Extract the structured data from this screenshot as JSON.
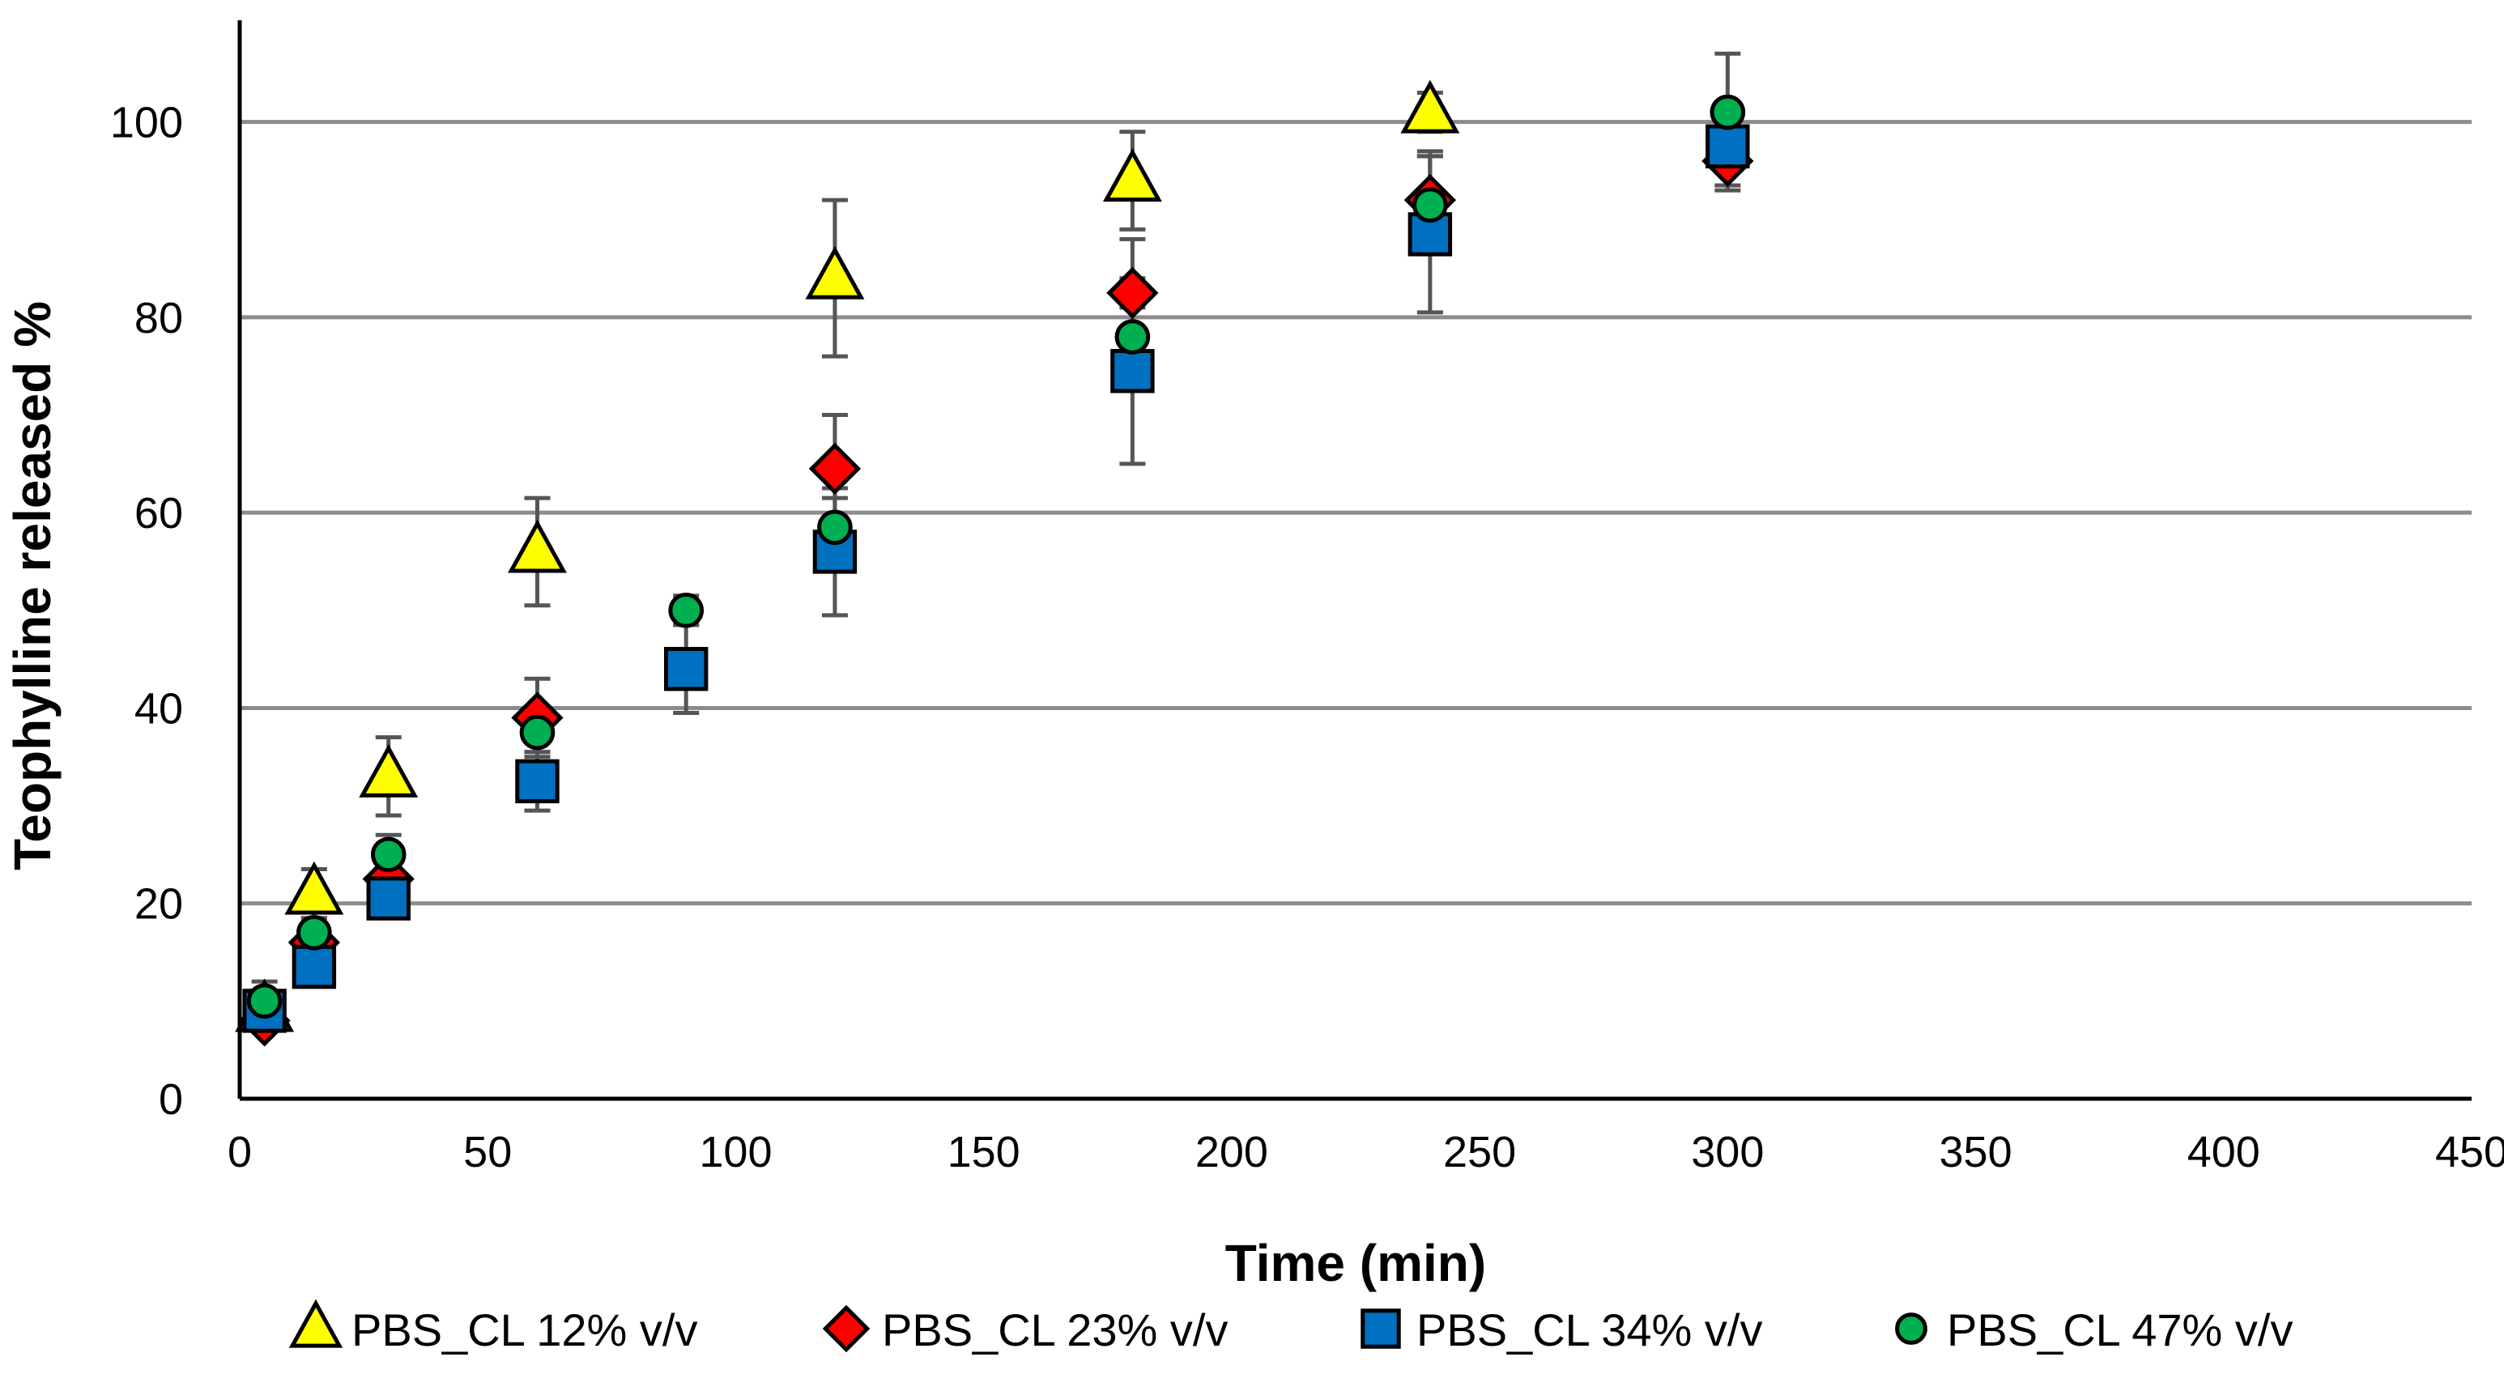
{
  "chart_data": {
    "type": "scatter",
    "title": "",
    "xlabel": "Time (min)",
    "ylabel": "Teophylline released %",
    "xlim": [
      0,
      450
    ],
    "ylim": [
      0,
      110
    ],
    "xticks": [
      0,
      50,
      100,
      150,
      200,
      250,
      300,
      350,
      400,
      450
    ],
    "yticks": [
      0,
      20,
      40,
      60,
      80,
      100
    ],
    "grid": "horizontal",
    "legend": "bottom",
    "series": [
      {
        "name": "PBS_CL 12% v/v",
        "marker": "triangle",
        "color": "#ffff00",
        "points": [
          {
            "x": 5,
            "y": 9,
            "err": 2
          },
          {
            "x": 15,
            "y": 21,
            "err": 2.5
          },
          {
            "x": 30,
            "y": 33,
            "err": 4
          },
          {
            "x": 60,
            "y": 56,
            "err": 5.5
          },
          {
            "x": 120,
            "y": 84,
            "err": 8
          },
          {
            "x": 180,
            "y": 94,
            "err": 5
          },
          {
            "x": 240,
            "y": 101,
            "err": 2
          }
        ]
      },
      {
        "name": "PBS_CL 23% v/v",
        "marker": "diamond",
        "color": "#ff0000",
        "points": [
          {
            "x": 5,
            "y": 8,
            "err": 1
          },
          {
            "x": 15,
            "y": 16,
            "err": 1.5
          },
          {
            "x": 30,
            "y": 22.5,
            "err": 2
          },
          {
            "x": 60,
            "y": 39,
            "err": 4
          },
          {
            "x": 120,
            "y": 64.5,
            "err": 5.5
          },
          {
            "x": 180,
            "y": 82.5,
            "err": 5.5
          },
          {
            "x": 240,
            "y": 92,
            "err": 5
          },
          {
            "x": 300,
            "y": 96,
            "err": 3
          }
        ]
      },
      {
        "name": "PBS_CL 34% v/v",
        "marker": "square",
        "color": "#0070c0",
        "points": [
          {
            "x": 5,
            "y": 9,
            "err": 1
          },
          {
            "x": 15,
            "y": 13.5,
            "err": 1
          },
          {
            "x": 30,
            "y": 20.5,
            "err": 1.5
          },
          {
            "x": 60,
            "y": 32.5,
            "err": 3
          },
          {
            "x": 90,
            "y": 44,
            "err": 4.5
          },
          {
            "x": 120,
            "y": 56,
            "err": 6.5
          },
          {
            "x": 180,
            "y": 74.5,
            "err": 9.5
          },
          {
            "x": 240,
            "y": 88.5,
            "err": 8
          },
          {
            "x": 300,
            "y": 97.5,
            "err": 4
          }
        ]
      },
      {
        "name": "PBS_CL 47% v/v",
        "marker": "circle",
        "color": "#00b050",
        "points": [
          {
            "x": 5,
            "y": 10,
            "err": 2
          },
          {
            "x": 15,
            "y": 17,
            "err": 1.5
          },
          {
            "x": 30,
            "y": 25,
            "err": 2
          },
          {
            "x": 60,
            "y": 37.5,
            "err": 2
          },
          {
            "x": 90,
            "y": 50,
            "err": 1.5
          },
          {
            "x": 120,
            "y": 58.5,
            "err": 3
          },
          {
            "x": 180,
            "y": 78,
            "err": 3
          },
          {
            "x": 240,
            "y": 91.5,
            "err": 5
          },
          {
            "x": 300,
            "y": 101,
            "err": 6
          }
        ]
      }
    ]
  }
}
